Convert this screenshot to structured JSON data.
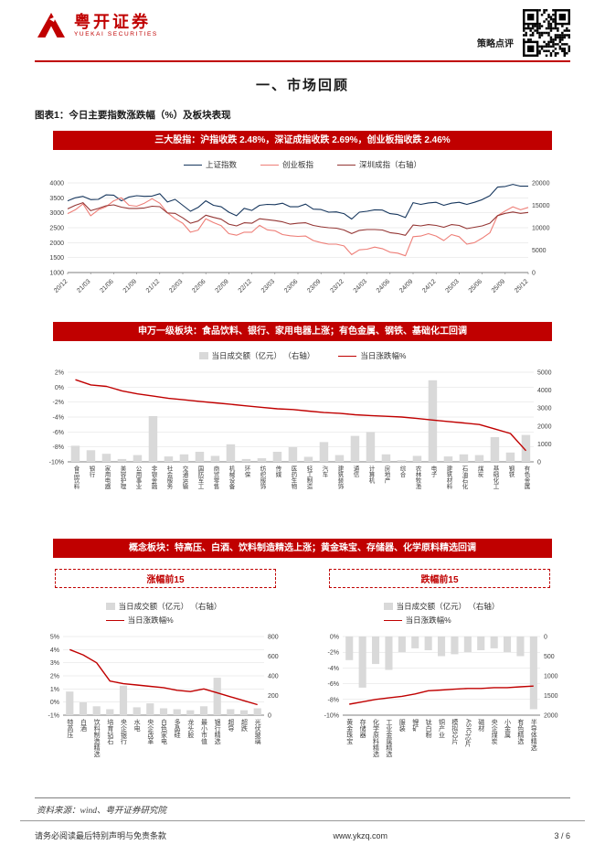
{
  "header": {
    "logo_cn": "粤开证券",
    "logo_en": "YUEKAI SECURITIES",
    "doc_type": "策略点评"
  },
  "section_title": "一、市场回顾",
  "figure_caption": "图表1：今日主要指数涨跌幅（%）及板块表现",
  "banners": {
    "indices": "三大股指：沪指收跌 2.48%，深证成指收跌 2.69%，创业板指收跌 2.46%",
    "sectors": "申万一级板块：食品饮料、银行、家用电器上涨；有色金属、钢铁、基础化工回调",
    "concepts": "概念板块：特高压、白酒、饮料制造精选上涨；黄金珠宝、存储器、化学原料精选回调"
  },
  "boxes": {
    "gainers": "涨幅前15",
    "losers": "跌幅前15"
  },
  "source_note": "资料来源：wind、粤开证券研究院",
  "footer": {
    "disclaimer": "请务必阅读最后特别声明与免责条款",
    "site": "www.ykzq.com",
    "page": "3 / 6"
  },
  "colors": {
    "brand_red": "#C00000",
    "bar_gray": "#D9D9D9",
    "sse_navy": "#17375E",
    "chinext_salmon": "#EE7E77",
    "szse_maroon": "#943634"
  },
  "chart_data": [
    {
      "type": "line",
      "x_ticks": [
        "20/12",
        "21/03",
        "21/06",
        "21/09",
        "21/12",
        "22/03",
        "22/06",
        "22/09",
        "22/12",
        "23/03",
        "23/06",
        "23/09",
        "23/12",
        "24/03",
        "24/06",
        "24/09",
        "24/12",
        "25/03",
        "25/06",
        "25/09",
        "25/12"
      ],
      "left_axis": {
        "min": 1000,
        "max": 4000,
        "step": 500
      },
      "right_axis": {
        "min": 0,
        "max": 20000,
        "step": 5000
      },
      "legend_position": "top",
      "grid": true,
      "series": [
        {
          "name": "上证指数",
          "axis": "left",
          "color": "#17375E",
          "values": [
            3400,
            3500,
            3550,
            3440,
            3450,
            3600,
            3590,
            3400,
            3530,
            3570,
            3550,
            3560,
            3640,
            3360,
            3450,
            3250,
            3050,
            3180,
            3400,
            3250,
            3200,
            3020,
            2900,
            3150,
            3080,
            3250,
            3280,
            3270,
            3320,
            3200,
            3200,
            3290,
            3120,
            3110,
            3020,
            3030,
            2970,
            2790,
            3020,
            3050,
            3100,
            3090,
            2970,
            2940,
            2840,
            3340,
            3280,
            3330,
            3350,
            3250,
            3320,
            3350,
            3280,
            3350,
            3440,
            3570,
            3860,
            3880,
            3950,
            3890,
            3890
          ]
        },
        {
          "name": "创业板指",
          "axis": "left",
          "color": "#EE7E77",
          "values": [
            2970,
            3100,
            3300,
            2900,
            3100,
            3200,
            3400,
            3500,
            3250,
            3220,
            3320,
            3470,
            3320,
            3000,
            2800,
            2650,
            2350,
            2420,
            2800,
            2670,
            2570,
            2300,
            2250,
            2350,
            2350,
            2580,
            2430,
            2400,
            2270,
            2230,
            2210,
            2220,
            2070,
            2000,
            1950,
            1950,
            1890,
            1600,
            1760,
            1780,
            1850,
            1800,
            1680,
            1650,
            1560,
            2200,
            2220,
            2300,
            2220,
            2070,
            2270,
            2200,
            1950,
            2000,
            2150,
            2330,
            2900,
            3060,
            3200,
            3100,
            3180
          ]
        },
        {
          "name": "深圳成指（右轴）",
          "axis": "right",
          "color": "#943634",
          "values": [
            14200,
            15000,
            15600,
            13800,
            14300,
            14900,
            15100,
            14600,
            14300,
            14300,
            14400,
            14800,
            14700,
            13300,
            13200,
            12200,
            11000,
            11500,
            12800,
            12300,
            11900,
            10800,
            10400,
            11100,
            11000,
            12000,
            11800,
            11600,
            11300,
            10800,
            11000,
            11100,
            10500,
            10200,
            10000,
            9900,
            9500,
            8700,
            9400,
            9600,
            9600,
            9500,
            8900,
            8700,
            8300,
            10600,
            10400,
            10700,
            10500,
            10100,
            10700,
            10500,
            9800,
            10100,
            10400,
            11000,
            12700,
            13200,
            13500,
            13200,
            13400
          ]
        }
      ]
    },
    {
      "type": "bar+line",
      "legend_bar": "当日成交额（亿元） （右轴）",
      "legend_line": "当日涨跌幅%",
      "bar_color": "#D9D9D9",
      "line_color": "#C00000",
      "left_axis": {
        "min": -10,
        "max": 2,
        "step": 2,
        "suffix": "%"
      },
      "right_axis": {
        "min": 0,
        "max": 5000,
        "step": 1000
      },
      "categories": [
        "食品饮料",
        "银行",
        "家用电器",
        "美容护理",
        "公用事业",
        "非银金融",
        "社会服务",
        "交通运输",
        "国防军工",
        "商贸零售",
        "机械设备",
        "环保",
        "纺织服饰",
        "传媒",
        "医药生物",
        "轻工制造",
        "汽车",
        "建筑装饰",
        "通信",
        "计算机",
        "房地产",
        "综合",
        "农林牧渔",
        "电子",
        "建筑材料",
        "石油石化",
        "煤炭",
        "基础化工",
        "钢铁",
        "有色金属"
      ],
      "bar_values": [
        900,
        650,
        450,
        160,
        380,
        2550,
        300,
        420,
        560,
        330,
        980,
        160,
        200,
        560,
        820,
        280,
        1100,
        380,
        1450,
        1650,
        420,
        90,
        330,
        4550,
        300,
        420,
        380,
        1380,
        520,
        1500
      ],
      "line_values": [
        1.0,
        0.3,
        0.1,
        -0.5,
        -0.9,
        -1.2,
        -1.5,
        -1.7,
        -1.9,
        -2.1,
        -2.3,
        -2.5,
        -2.7,
        -2.9,
        -3.0,
        -3.2,
        -3.4,
        -3.5,
        -3.7,
        -3.8,
        -3.9,
        -4.0,
        -4.2,
        -4.4,
        -4.6,
        -4.8,
        -5.0,
        -5.6,
        -6.2,
        -8.5
      ]
    },
    {
      "type": "bar+line",
      "title": "涨幅前15",
      "legend_bar": "当日成交额（亿元） （右轴）",
      "legend_line": "当日涨跌幅%",
      "bar_color": "#D9D9D9",
      "line_color": "#C00000",
      "left_axis": {
        "min": -1,
        "max": 5,
        "step": 1,
        "suffix": "%"
      },
      "right_axis": {
        "min": 0,
        "max": 800,
        "step": 200
      },
      "categories": [
        "特高压",
        "白酒",
        "饮料制造精选",
        "培育钻石",
        "央企银行",
        "水电",
        "央企改革",
        "白色家电",
        "多晶硅",
        "龙头股",
        "最小市值",
        "银行精选",
        "超导",
        "超跌",
        "光伏玻璃"
      ],
      "bar_values": [
        240,
        130,
        90,
        60,
        300,
        80,
        120,
        70,
        60,
        50,
        90,
        380,
        60,
        50,
        70
      ],
      "line_values": [
        4.0,
        3.6,
        3.0,
        1.6,
        1.4,
        1.3,
        1.2,
        1.1,
        0.9,
        0.8,
        1.0,
        0.7,
        0.4,
        0.1,
        -0.2
      ]
    },
    {
      "type": "bar+line",
      "title": "跌幅前15",
      "legend_bar": "当日成交额（亿元） （右轴）",
      "legend_line": "当日涨跌幅%",
      "bar_color": "#D9D9D9",
      "line_color": "#C00000",
      "left_axis": {
        "min": -10,
        "max": 0,
        "step": 2,
        "suffix": "%"
      },
      "right_axis": {
        "min": 0,
        "max": 2000,
        "step": 500,
        "inverted": true
      },
      "categories": [
        "黄金珠宝",
        "存储器",
        "化学原料精选",
        "工业金属精选",
        "服装",
        "锂矿",
        "钛白粉",
        "铜产业",
        "模拟芯片",
        "ASIC芯片",
        "磁材",
        "央企煤炭",
        "小金属",
        "有色精选",
        "半导体精选"
      ],
      "bar_values": [
        600,
        1300,
        700,
        850,
        400,
        300,
        350,
        500,
        450,
        400,
        350,
        300,
        400,
        500,
        1850
      ],
      "line_values": [
        -8.6,
        -8.3,
        -8.0,
        -7.8,
        -7.6,
        -7.3,
        -6.9,
        -6.8,
        -6.7,
        -6.6,
        -6.6,
        -6.5,
        -6.5,
        -6.4,
        -6.3
      ]
    }
  ]
}
